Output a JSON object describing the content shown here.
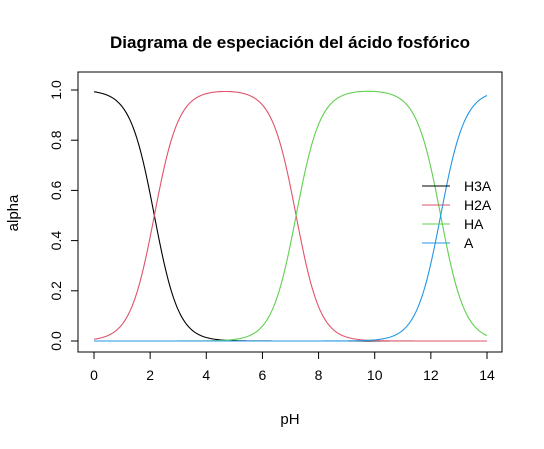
{
  "chart_data": {
    "type": "line",
    "title": "Diagrama de especiación del ácido fosfórico",
    "xlabel": "pH",
    "ylabel": "alpha",
    "xlim": [
      0,
      14
    ],
    "ylim": [
      0,
      1
    ],
    "x_ticks": [
      "0",
      "2",
      "4",
      "6",
      "8",
      "10",
      "12",
      "14"
    ],
    "y_ticks": [
      "0.0",
      "0.2",
      "0.4",
      "0.6",
      "0.8",
      "1.0"
    ],
    "pKa": [
      2.15,
      7.2,
      12.35
    ],
    "pH_range": [
      0,
      14
    ],
    "grid": false,
    "legend_position": "right",
    "series": [
      {
        "name": "H3A",
        "color": "#000000"
      },
      {
        "name": "H2A",
        "color": "#DF536B"
      },
      {
        "name": "HA",
        "color": "#61D04F"
      },
      {
        "name": "A",
        "color": "#2297E6"
      }
    ]
  }
}
